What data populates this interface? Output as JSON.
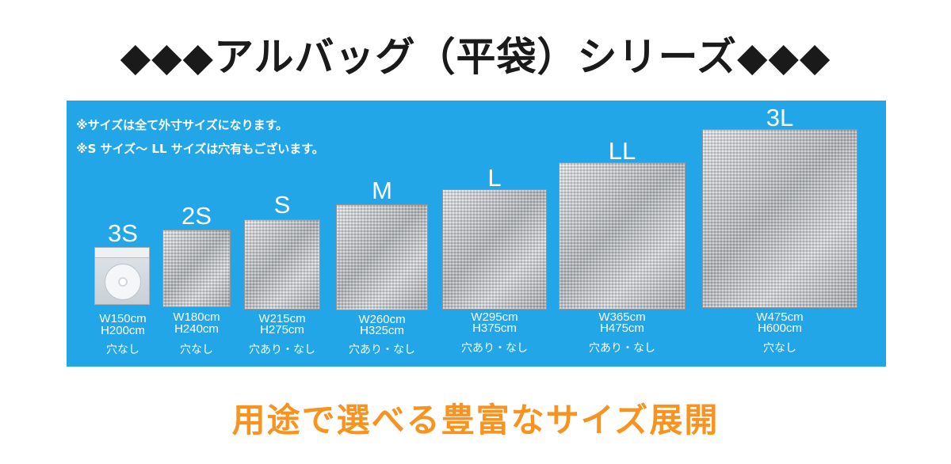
{
  "title": "◆◆◆アルバッグ（平袋）シリーズ◆◆◆",
  "notes": [
    "※サイズは全て外寸サイズになります。",
    "※S サイズ～ LL サイズは穴有もございます。"
  ],
  "items": [
    {
      "label": "3S",
      "w": "W150cm",
      "h": "H200cm",
      "hole": "穴なし"
    },
    {
      "label": "2S",
      "w": "W180cm",
      "h": "H240cm",
      "hole": "穴なし"
    },
    {
      "label": "S",
      "w": "W215cm",
      "h": "H275cm",
      "hole": "穴あり・なし"
    },
    {
      "label": "M",
      "w": "W260cm",
      "h": "H325cm",
      "hole": "穴あり・なし"
    },
    {
      "label": "L",
      "w": "W295cm",
      "h": "H375cm",
      "hole": "穴あり・なし"
    },
    {
      "label": "LL",
      "w": "W365cm",
      "h": "H475cm",
      "hole": "穴あり・なし"
    },
    {
      "label": "3L",
      "w": "W475cm",
      "h": "H600cm",
      "hole": "穴なし"
    }
  ],
  "tagline": "用途で選べる豊富なサイズ展開",
  "colors": {
    "panel": "#22a6e8",
    "tagline": "#f7931e",
    "title": "#1a1a1a"
  }
}
